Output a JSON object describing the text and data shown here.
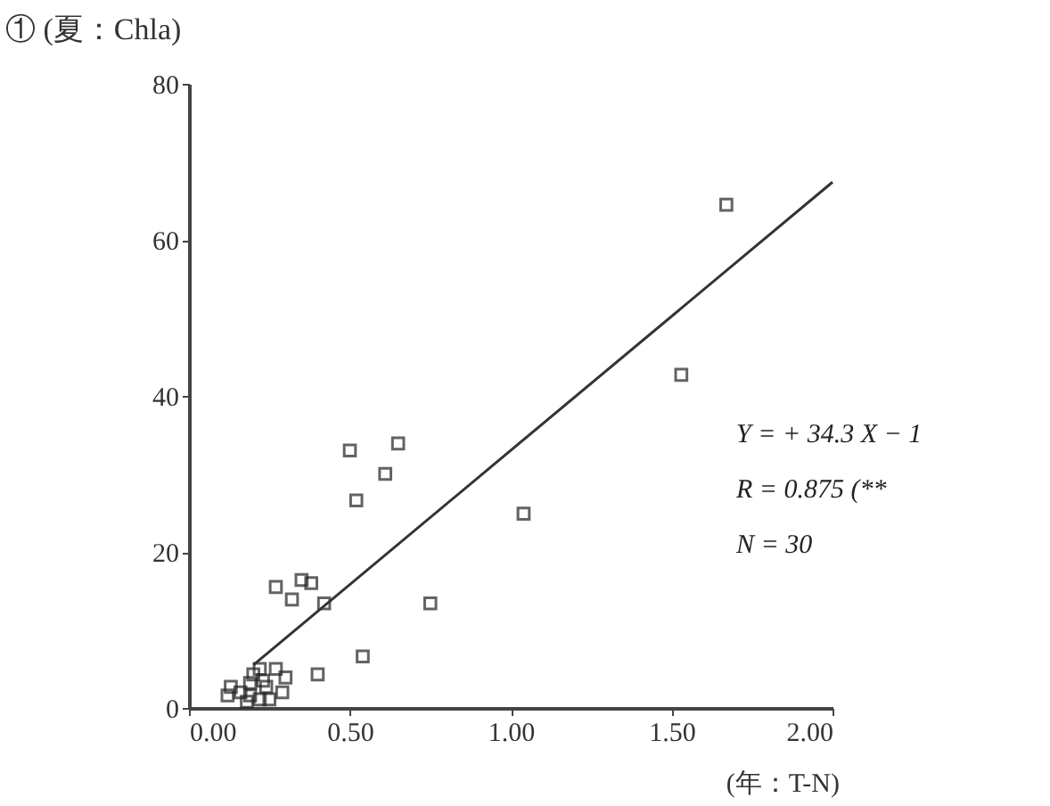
{
  "chart_data": {
    "type": "scatter",
    "title": "① (夏：Chla)",
    "xlabel": "(年：T-N)",
    "xlim": [
      0,
      2
    ],
    "ylim": [
      0,
      80
    ],
    "xticks": [
      {
        "value": 0,
        "label": "0.00"
      },
      {
        "value": 0.5,
        "label": "0.50"
      },
      {
        "value": 1,
        "label": "1.00"
      },
      {
        "value": 1.5,
        "label": "1.50"
      },
      {
        "value": 2,
        "label": "2.00"
      }
    ],
    "yticks": [
      0,
      20,
      40,
      60,
      80
    ],
    "grid": false,
    "series": [
      {
        "marker": "square",
        "color": "#222222",
        "x": [
          1.67,
          1.53,
          1.04,
          0.5,
          0.65,
          0.61,
          0.52,
          0.75,
          0.27,
          0.35,
          0.38,
          0.42,
          0.32,
          0.54,
          0.4,
          0.22,
          0.27,
          0.19,
          0.13,
          0.24,
          0.19,
          0.25,
          0.12,
          0.3,
          0.22,
          0.16,
          0.29,
          0.2,
          0.18,
          0.23
        ],
        "values": [
          64.5,
          42.7,
          24.9,
          33,
          33.9,
          30,
          26.6,
          13.4,
          15.5,
          16.4,
          16,
          13.4,
          13.9,
          6.6,
          4.3,
          5,
          5,
          3.2,
          2.7,
          2.7,
          1.6,
          1.1,
          1.6,
          3.9,
          1.1,
          2,
          2,
          4.3,
          0.8,
          3.5
        ]
      },
      {
        "type": "line",
        "marker": "none",
        "line_style": "solid",
        "color": "#333333",
        "x": [
          0.2,
          2.0
        ],
        "values": [
          5.5,
          67.4
        ]
      }
    ],
    "annotations": [
      "Y = + 34.3 X − 1",
      "R = 0.875 (**",
      "N = 30"
    ]
  }
}
